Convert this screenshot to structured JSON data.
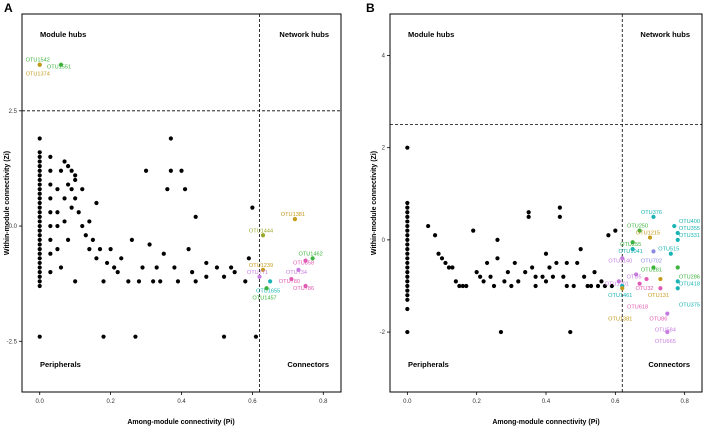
{
  "chart_data": [
    {
      "panel_label": "A",
      "type": "scatter",
      "xlabel": "Among-module connectivity (Pi)",
      "ylabel": "Within-module connectivity (Zi)",
      "xlim": [
        -0.05,
        0.85
      ],
      "ylim": [
        -3.6,
        4.6
      ],
      "x_ticks": [
        "0.0",
        "0.2",
        "0.4",
        "0.6",
        "0.8"
      ],
      "x_tick_values": [
        0,
        0.2,
        0.4,
        0.6,
        0.8
      ],
      "y_ticks": [
        "-2.5",
        "0.0",
        "2.5"
      ],
      "y_tick_values": [
        -2.5,
        0,
        2.5
      ],
      "thresholds": {
        "pi": 0.62,
        "zi": 2.5
      },
      "quadrant_labels": {
        "top_left": "Module hubs",
        "top_right": "Network hubs",
        "bottom_left": "Peripherals",
        "bottom_right": "Connectors"
      },
      "grid": false,
      "points": [
        [
          0.0,
          1.9
        ],
        [
          0.0,
          1.6
        ],
        [
          0.0,
          1.5
        ],
        [
          0.0,
          1.4
        ],
        [
          0.0,
          1.3
        ],
        [
          0.0,
          1.2
        ],
        [
          0.0,
          1.1
        ],
        [
          0.0,
          1.0
        ],
        [
          0.0,
          0.9
        ],
        [
          0.0,
          0.8
        ],
        [
          0.0,
          0.7
        ],
        [
          0.0,
          0.6
        ],
        [
          0.0,
          0.5
        ],
        [
          0.0,
          0.4
        ],
        [
          0.0,
          0.3
        ],
        [
          0.0,
          0.2
        ],
        [
          0.0,
          0.1
        ],
        [
          0.0,
          0.0
        ],
        [
          0.0,
          -0.1
        ],
        [
          0.0,
          -0.2
        ],
        [
          0.0,
          -0.3
        ],
        [
          0.0,
          -0.4
        ],
        [
          0.0,
          -0.5
        ],
        [
          0.0,
          -0.6
        ],
        [
          0.0,
          -0.7
        ],
        [
          0.0,
          -0.8
        ],
        [
          0.0,
          -0.9
        ],
        [
          0.0,
          -1.0
        ],
        [
          0.0,
          -1.1
        ],
        [
          0.0,
          -1.2
        ],
        [
          0.0,
          -1.3
        ],
        [
          0.0,
          -2.4
        ],
        [
          0.03,
          1.5
        ],
        [
          0.03,
          1.2
        ],
        [
          0.03,
          0.9
        ],
        [
          0.03,
          0.6
        ],
        [
          0.03,
          0.3
        ],
        [
          0.03,
          0.0
        ],
        [
          0.03,
          -0.3
        ],
        [
          0.03,
          -0.6
        ],
        [
          0.03,
          -1.0
        ],
        [
          0.05,
          0.8
        ],
        [
          0.05,
          0.3
        ],
        [
          0.05,
          0.0
        ],
        [
          0.05,
          -0.5
        ],
        [
          0.06,
          1.2
        ],
        [
          0.06,
          -0.9
        ],
        [
          0.07,
          1.4
        ],
        [
          0.07,
          0.6
        ],
        [
          0.07,
          0.1
        ],
        [
          0.08,
          1.3
        ],
        [
          0.08,
          0.9
        ],
        [
          0.08,
          -0.3
        ],
        [
          0.09,
          1.2
        ],
        [
          0.09,
          0.8
        ],
        [
          0.09,
          0.4
        ],
        [
          0.1,
          1.1
        ],
        [
          0.1,
          1.0
        ],
        [
          0.1,
          0.6
        ],
        [
          0.1,
          -1.2
        ],
        [
          0.11,
          0.3
        ],
        [
          0.12,
          0.0
        ],
        [
          0.12,
          0.8
        ],
        [
          0.13,
          -0.2
        ],
        [
          0.14,
          0.1
        ],
        [
          0.14,
          -0.5
        ],
        [
          0.15,
          -0.3
        ],
        [
          0.16,
          0.5
        ],
        [
          0.16,
          -0.7
        ],
        [
          0.17,
          -0.5
        ],
        [
          0.18,
          -2.4
        ],
        [
          0.18,
          -1.2
        ],
        [
          0.19,
          -0.8
        ],
        [
          0.2,
          -0.5
        ],
        [
          0.21,
          -0.9
        ],
        [
          0.22,
          -1.0
        ],
        [
          0.23,
          -0.7
        ],
        [
          0.25,
          -1.2
        ],
        [
          0.26,
          -0.3
        ],
        [
          0.27,
          -2.4
        ],
        [
          0.28,
          -1.2
        ],
        [
          0.29,
          -0.9
        ],
        [
          0.3,
          1.2
        ],
        [
          0.31,
          -0.4
        ],
        [
          0.32,
          -1.2
        ],
        [
          0.33,
          -0.9
        ],
        [
          0.34,
          -1.2
        ],
        [
          0.35,
          -0.6
        ],
        [
          0.36,
          0.8
        ],
        [
          0.37,
          1.9
        ],
        [
          0.37,
          1.2
        ],
        [
          0.38,
          -0.9
        ],
        [
          0.39,
          -1.2
        ],
        [
          0.4,
          1.2
        ],
        [
          0.41,
          0.8
        ],
        [
          0.42,
          -0.5
        ],
        [
          0.43,
          -1.0
        ],
        [
          0.44,
          -1.2
        ],
        [
          0.44,
          0.2
        ],
        [
          0.47,
          -0.8
        ],
        [
          0.47,
          -1.1
        ],
        [
          0.5,
          -0.9
        ],
        [
          0.52,
          -1.1
        ],
        [
          0.52,
          -2.4
        ],
        [
          0.54,
          -0.9
        ],
        [
          0.55,
          -1.0
        ],
        [
          0.58,
          -1.2
        ],
        [
          0.59,
          -0.7
        ],
        [
          0.6,
          0.4
        ],
        [
          0.61,
          -2.4
        ]
      ],
      "highlighted": [
        {
          "label": "OTU1542",
          "x": 0.0,
          "y": 3.5,
          "color": "#3db33d"
        },
        {
          "label": "OTU1551",
          "x": 0.06,
          "y": 3.5,
          "color": "#3db33d"
        },
        {
          "label": "OTU1374",
          "x": 0.0,
          "y": 3.5,
          "color": "#c49a1a"
        },
        {
          "label": "OTU1381",
          "x": 0.72,
          "y": 0.15,
          "color": "#c49a1a"
        },
        {
          "label": "OTU1444",
          "x": 0.63,
          "y": -0.2,
          "color": "#9aa82a"
        },
        {
          "label": "OTU1462",
          "x": 0.77,
          "y": -0.7,
          "color": "#3db33d"
        },
        {
          "label": "OTU1239",
          "x": 0.63,
          "y": -0.95,
          "color": "#c49a1a"
        },
        {
          "label": "OTU858",
          "x": 0.75,
          "y": -0.75,
          "color": "#e05ab3"
        },
        {
          "label": "OTU734",
          "x": 0.73,
          "y": -0.95,
          "color": "#c77be0"
        },
        {
          "label": "OTU771",
          "x": 0.62,
          "y": -1.1,
          "color": "#c77be0"
        },
        {
          "label": "OTU780",
          "x": 0.71,
          "y": -1.15,
          "color": "#e05ab3"
        },
        {
          "label": "OTU1655",
          "x": 0.65,
          "y": -1.2,
          "color": "#1ab3b3"
        },
        {
          "label": "OTU1457",
          "x": 0.64,
          "y": -1.35,
          "color": "#3db33d"
        },
        {
          "label": "OTU786",
          "x": 0.75,
          "y": -1.3,
          "color": "#e05ab3"
        }
      ]
    },
    {
      "panel_label": "B",
      "type": "scatter",
      "xlabel": "Among-module connectivity (Pi)",
      "ylabel": "Within-module connectivity (Zi)",
      "xlim": [
        -0.05,
        0.85
      ],
      "ylim": [
        -3.3,
        4.9
      ],
      "x_ticks": [
        "0.0",
        "0.2",
        "0.4",
        "0.6",
        "0.8"
      ],
      "x_tick_values": [
        0,
        0.2,
        0.4,
        0.6,
        0.8
      ],
      "y_ticks": [
        "-2",
        "0",
        "2",
        "4"
      ],
      "y_tick_values": [
        -2,
        0,
        2,
        4
      ],
      "thresholds": {
        "pi": 0.62,
        "zi": 2.5
      },
      "quadrant_labels": {
        "top_left": "Module hubs",
        "top_right": "Network hubs",
        "bottom_left": "Peripherals",
        "bottom_right": "Connectors"
      },
      "grid": false,
      "points": [
        [
          0.0,
          2.0
        ],
        [
          0.0,
          0.8
        ],
        [
          0.0,
          0.7
        ],
        [
          0.0,
          0.6
        ],
        [
          0.0,
          0.5
        ],
        [
          0.0,
          0.4
        ],
        [
          0.0,
          0.3
        ],
        [
          0.0,
          0.2
        ],
        [
          0.0,
          0.1
        ],
        [
          0.0,
          0.0
        ],
        [
          0.0,
          -0.1
        ],
        [
          0.0,
          -0.2
        ],
        [
          0.0,
          -0.3
        ],
        [
          0.0,
          -0.4
        ],
        [
          0.0,
          -0.5
        ],
        [
          0.0,
          -0.6
        ],
        [
          0.0,
          -0.7
        ],
        [
          0.0,
          -0.8
        ],
        [
          0.0,
          -0.9
        ],
        [
          0.0,
          -1.0
        ],
        [
          0.0,
          -1.1
        ],
        [
          0.0,
          -1.2
        ],
        [
          0.0,
          -1.3
        ],
        [
          0.0,
          -1.5
        ],
        [
          0.0,
          -2.0
        ],
        [
          0.06,
          0.3
        ],
        [
          0.08,
          0.1
        ],
        [
          0.09,
          -0.3
        ],
        [
          0.1,
          -0.4
        ],
        [
          0.11,
          -0.5
        ],
        [
          0.12,
          -0.6
        ],
        [
          0.13,
          -0.6
        ],
        [
          0.14,
          -0.9
        ],
        [
          0.15,
          -1.0
        ],
        [
          0.16,
          -1.0
        ],
        [
          0.17,
          -1.0
        ],
        [
          0.19,
          0.2
        ],
        [
          0.2,
          -0.7
        ],
        [
          0.21,
          -0.8
        ],
        [
          0.22,
          -0.9
        ],
        [
          0.23,
          -0.5
        ],
        [
          0.24,
          -0.8
        ],
        [
          0.25,
          -1.0
        ],
        [
          0.26,
          -0.4
        ],
        [
          0.26,
          0.0
        ],
        [
          0.27,
          -2.0
        ],
        [
          0.28,
          -0.9
        ],
        [
          0.29,
          -0.7
        ],
        [
          0.3,
          -1.0
        ],
        [
          0.31,
          -0.5
        ],
        [
          0.32,
          -0.9
        ],
        [
          0.34,
          -0.7
        ],
        [
          0.35,
          0.6
        ],
        [
          0.35,
          0.5
        ],
        [
          0.36,
          -0.6
        ],
        [
          0.37,
          -0.8
        ],
        [
          0.37,
          -1.0
        ],
        [
          0.39,
          -0.8
        ],
        [
          0.4,
          -0.3
        ],
        [
          0.4,
          -0.9
        ],
        [
          0.41,
          -0.6
        ],
        [
          0.42,
          -0.8
        ],
        [
          0.43,
          -0.5
        ],
        [
          0.44,
          0.7
        ],
        [
          0.44,
          0.5
        ],
        [
          0.45,
          -0.8
        ],
        [
          0.46,
          -1.0
        ],
        [
          0.46,
          -0.5
        ],
        [
          0.47,
          -2.0
        ],
        [
          0.48,
          -1.0
        ],
        [
          0.49,
          -0.5
        ],
        [
          0.5,
          -0.2
        ],
        [
          0.51,
          -0.8
        ],
        [
          0.52,
          -1.0
        ],
        [
          0.53,
          -1.0
        ],
        [
          0.54,
          -0.7
        ],
        [
          0.55,
          -1.0
        ],
        [
          0.56,
          -0.9
        ],
        [
          0.57,
          -1.0
        ],
        [
          0.58,
          0.1
        ],
        [
          0.59,
          -1.0
        ],
        [
          0.6,
          0.2
        ]
      ],
      "highlighted": [
        {
          "label": "OTU376",
          "x": 0.71,
          "y": 0.5,
          "color": "#1ab3b3"
        },
        {
          "label": "OTU400",
          "x": 0.77,
          "y": 0.3,
          "color": "#1ab3b3"
        },
        {
          "label": "OTU250",
          "x": 0.67,
          "y": 0.2,
          "color": "#3db33d"
        },
        {
          "label": "OTU355",
          "x": 0.78,
          "y": 0.15,
          "color": "#1ab3b3"
        },
        {
          "label": "OTU1215",
          "x": 0.7,
          "y": 0.05,
          "color": "#c49a1a"
        },
        {
          "label": "OTU331",
          "x": 0.78,
          "y": 0.0,
          "color": "#1ab3b3"
        },
        {
          "label": "OTU255",
          "x": 0.65,
          "y": -0.05,
          "color": "#3db33d"
        },
        {
          "label": "OTU1041",
          "x": 0.65,
          "y": -0.2,
          "color": "#1ab3b3"
        },
        {
          "label": "OTU515",
          "x": 0.76,
          "y": -0.3,
          "color": "#1ab3b3"
        },
        {
          "label": "OTU702",
          "x": 0.71,
          "y": -0.25,
          "color": "#8a8ae0"
        },
        {
          "label": "OTU1140",
          "x": 0.62,
          "y": -0.4,
          "color": "#c77be0"
        },
        {
          "label": "OTU281",
          "x": 0.71,
          "y": -0.6,
          "color": "#3db33d"
        },
        {
          "label": "OTU286",
          "x": 0.78,
          "y": -0.6,
          "color": "#3db33d"
        },
        {
          "label": "OTU5",
          "x": 0.66,
          "y": -0.75,
          "color": "#c77be0"
        },
        {
          "label": "OTU32",
          "x": 0.69,
          "y": -0.85,
          "color": "#e05ab3"
        },
        {
          "label": "OTU131",
          "x": 0.73,
          "y": -0.85,
          "color": "#c49a1a"
        },
        {
          "label": "OTU1201",
          "x": 0.61,
          "y": -0.9,
          "color": "#c77be0"
        },
        {
          "label": "OTU418",
          "x": 0.78,
          "y": -0.9,
          "color": "#1ab3b3"
        },
        {
          "label": "OTU618",
          "x": 0.67,
          "y": -0.95,
          "color": "#e05ab3"
        },
        {
          "label": "OTU1461",
          "x": 0.62,
          "y": -1.0,
          "color": "#1ab3b3"
        },
        {
          "label": "OTU375",
          "x": 0.78,
          "y": -1.05,
          "color": "#1ab3b3"
        },
        {
          "label": "OTU1381",
          "x": 0.62,
          "y": -1.05,
          "color": "#c49a1a"
        },
        {
          "label": "OTU86",
          "x": 0.73,
          "y": -1.05,
          "color": "#e05ab3"
        },
        {
          "label": "OTU584",
          "x": 0.75,
          "y": -1.6,
          "color": "#c77be0"
        },
        {
          "label": "OTU665",
          "x": 0.75,
          "y": -2.0,
          "color": "#c77be0"
        }
      ]
    }
  ]
}
